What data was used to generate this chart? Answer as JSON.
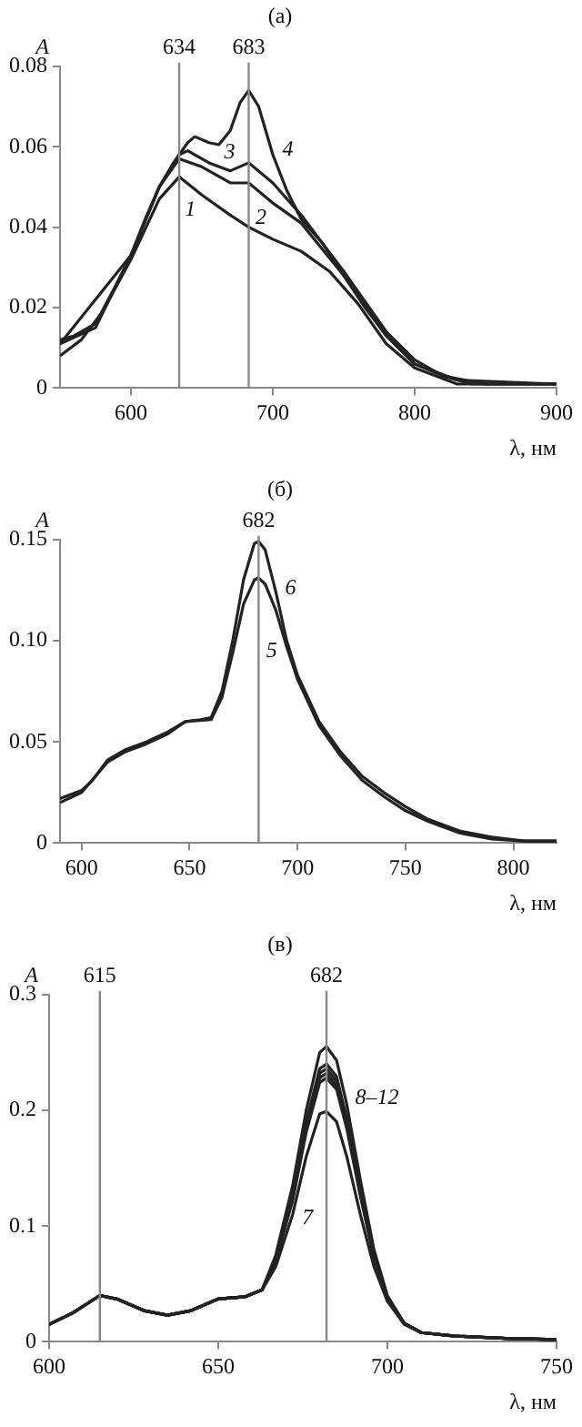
{
  "chart_data": [
    {
      "type": "line",
      "title": "(а)",
      "xlabel": "λ, нм",
      "ylabel": "A",
      "xlim": [
        550,
        900
      ],
      "xticks": [
        600,
        700,
        800,
        900
      ],
      "ylim": [
        0,
        0.08
      ],
      "yticks": [
        0,
        0.02,
        0.04,
        0.06,
        0.08
      ],
      "series": [
        {
          "color": "#222222",
          "x": [
            550,
            565,
            580,
            600,
            620,
            634,
            650,
            670,
            683,
            700,
            720,
            740,
            760,
            780,
            800,
            830,
            900
          ],
          "values": [
            0.008,
            0.012,
            0.019,
            0.032,
            0.047,
            0.0525,
            0.048,
            0.043,
            0.04,
            0.037,
            0.034,
            0.029,
            0.021,
            0.011,
            0.005,
            0.001,
            0.001
          ]
        },
        {
          "color": "#222222",
          "x": [
            550,
            600,
            620,
            634,
            650,
            670,
            683,
            700,
            720,
            750,
            780,
            800,
            830,
            900
          ],
          "values": [
            0.011,
            0.033,
            0.05,
            0.057,
            0.055,
            0.051,
            0.051,
            0.046,
            0.041,
            0.028,
            0.013,
            0.006,
            0.002,
            0.001
          ]
        },
        {
          "color": "#222222",
          "x": [
            550,
            575,
            600,
            620,
            634,
            640,
            655,
            670,
            683,
            700,
            720,
            750,
            780,
            800,
            820,
            850,
            900
          ],
          "values": [
            0.011,
            0.015,
            0.033,
            0.05,
            0.058,
            0.059,
            0.056,
            0.054,
            0.056,
            0.051,
            0.043,
            0.029,
            0.014,
            0.007,
            0.003,
            0.001,
            0.001
          ]
        },
        {
          "color": "#222222",
          "x": [
            550,
            560,
            575,
            590,
            600,
            610,
            620,
            630,
            640,
            645,
            655,
            662,
            670,
            677,
            683,
            690,
            700,
            710,
            720,
            735,
            750,
            765,
            780,
            800,
            820,
            840,
            870,
            900
          ],
          "values": [
            0.012,
            0.013,
            0.016,
            0.026,
            0.033,
            0.042,
            0.05,
            0.056,
            0.061,
            0.0625,
            0.061,
            0.0605,
            0.064,
            0.071,
            0.074,
            0.07,
            0.058,
            0.049,
            0.042,
            0.036,
            0.028,
            0.02,
            0.013,
            0.006,
            0.003,
            0.001,
            0.001,
            0.001
          ]
        }
      ],
      "ref_lines": [
        {
          "axis": "x",
          "value": 634,
          "label": "634",
          "color": "#888888"
        },
        {
          "axis": "x",
          "value": 683,
          "label": "683",
          "color": "#888888"
        }
      ],
      "annotations": [
        {
          "text": "1",
          "x": 650,
          "y": 0.048
        },
        {
          "text": "2",
          "x": 700,
          "y": 0.046
        },
        {
          "text": "3",
          "x": 670,
          "y": 0.054
        },
        {
          "text": "4",
          "x": 700,
          "y": 0.058
        }
      ]
    },
    {
      "type": "line",
      "title": "(б)",
      "xlabel": "λ, нм",
      "ylabel": "A",
      "xlim": [
        590,
        820
      ],
      "xticks": [
        600,
        650,
        700,
        750,
        800
      ],
      "ylim": [
        0,
        0.15
      ],
      "yticks": [
        0,
        0.05,
        {
          "value": 0.1,
          "label": "0.10"
        },
        0.15
      ],
      "series": [
        {
          "color": "#222222",
          "x": [
            590,
            600,
            612,
            620,
            630,
            640,
            648,
            660,
            665,
            670,
            675,
            680,
            682,
            685,
            690,
            695,
            700,
            710,
            720,
            730,
            740,
            750,
            760,
            775,
            790,
            805,
            820
          ],
          "values": [
            0.02,
            0.025,
            0.04,
            0.045,
            0.049,
            0.054,
            0.06,
            0.061,
            0.072,
            0.094,
            0.118,
            0.13,
            0.131,
            0.128,
            0.115,
            0.097,
            0.081,
            0.058,
            0.043,
            0.031,
            0.023,
            0.016,
            0.011,
            0.005,
            0.002,
            0.001,
            0.001
          ]
        },
        {
          "color": "#222222",
          "x": [
            590,
            600,
            605,
            612,
            620,
            630,
            640,
            648,
            655,
            660,
            665,
            670,
            675,
            680,
            682,
            685,
            690,
            695,
            700,
            710,
            720,
            730,
            740,
            750,
            760,
            775,
            790,
            805,
            820
          ],
          "values": [
            0.022,
            0.026,
            0.031,
            0.041,
            0.046,
            0.05,
            0.055,
            0.06,
            0.061,
            0.062,
            0.075,
            0.1,
            0.13,
            0.148,
            0.149,
            0.145,
            0.124,
            0.1,
            0.083,
            0.06,
            0.045,
            0.033,
            0.025,
            0.018,
            0.012,
            0.006,
            0.003,
            0.001,
            0.001
          ]
        }
      ],
      "ref_lines": [
        {
          "axis": "x",
          "value": 682,
          "label": "682",
          "color": "#888888"
        }
      ],
      "annotations": [
        {
          "text": "5",
          "x": 695,
          "y": 0.097
        },
        {
          "text": "6",
          "x": 690,
          "y": 0.124
        }
      ]
    },
    {
      "type": "line",
      "title": "(в)",
      "xlabel": "λ, нм",
      "ylabel": "A",
      "xlim": [
        600,
        750
      ],
      "xticks": [
        600,
        650,
        700,
        750
      ],
      "ylim": [
        0,
        0.3
      ],
      "yticks": [
        0,
        0.1,
        0.2,
        0.3
      ],
      "series": [
        {
          "color": "#222222",
          "x": [
            600,
            607,
            615,
            620,
            628,
            635,
            642,
            650,
            658,
            663,
            667,
            672,
            676,
            680,
            682,
            685,
            688,
            692,
            696,
            700,
            705,
            710,
            720,
            735,
            750
          ],
          "values": [
            0.015,
            0.025,
            0.04,
            0.037,
            0.027,
            0.023,
            0.027,
            0.037,
            0.039,
            0.045,
            0.065,
            0.11,
            0.16,
            0.197,
            0.199,
            0.19,
            0.16,
            0.11,
            0.065,
            0.035,
            0.015,
            0.008,
            0.005,
            0.003,
            0.002
          ]
        },
        {
          "color": "#222222",
          "x": [
            600,
            607,
            615,
            620,
            628,
            635,
            642,
            650,
            658,
            663,
            667,
            672,
            676,
            680,
            682,
            685,
            688,
            692,
            696,
            700,
            705,
            710,
            720,
            735,
            750
          ],
          "values": [
            0.015,
            0.025,
            0.04,
            0.037,
            0.027,
            0.023,
            0.027,
            0.037,
            0.039,
            0.045,
            0.07,
            0.122,
            0.181,
            0.224,
            0.228,
            0.218,
            0.184,
            0.126,
            0.073,
            0.037,
            0.016,
            0.008,
            0.005,
            0.003,
            0.002
          ]
        },
        {
          "color": "#222222",
          "x": [
            600,
            607,
            615,
            620,
            628,
            635,
            642,
            650,
            658,
            663,
            667,
            672,
            676,
            680,
            682,
            685,
            688,
            692,
            696,
            700,
            705,
            710,
            720,
            735,
            750
          ],
          "values": [
            0.015,
            0.025,
            0.04,
            0.037,
            0.027,
            0.023,
            0.027,
            0.037,
            0.039,
            0.045,
            0.07,
            0.124,
            0.184,
            0.228,
            0.232,
            0.221,
            0.187,
            0.128,
            0.074,
            0.037,
            0.016,
            0.008,
            0.005,
            0.003,
            0.002
          ]
        },
        {
          "color": "#222222",
          "x": [
            600,
            607,
            615,
            620,
            628,
            635,
            642,
            650,
            658,
            663,
            667,
            672,
            676,
            680,
            682,
            685,
            688,
            692,
            696,
            700,
            705,
            710,
            720,
            735,
            750
          ],
          "values": [
            0.015,
            0.025,
            0.04,
            0.037,
            0.027,
            0.023,
            0.027,
            0.037,
            0.039,
            0.045,
            0.071,
            0.126,
            0.187,
            0.232,
            0.236,
            0.225,
            0.19,
            0.13,
            0.075,
            0.038,
            0.016,
            0.008,
            0.005,
            0.003,
            0.002
          ]
        },
        {
          "color": "#222222",
          "x": [
            600,
            607,
            615,
            620,
            628,
            635,
            642,
            650,
            658,
            663,
            667,
            672,
            676,
            680,
            682,
            685,
            688,
            692,
            696,
            700,
            705,
            710,
            720,
            735,
            750
          ],
          "values": [
            0.015,
            0.025,
            0.04,
            0.037,
            0.027,
            0.023,
            0.027,
            0.037,
            0.039,
            0.045,
            0.072,
            0.128,
            0.19,
            0.236,
            0.24,
            0.229,
            0.193,
            0.132,
            0.076,
            0.038,
            0.016,
            0.008,
            0.005,
            0.003,
            0.002
          ]
        },
        {
          "color": "#222222",
          "x": [
            600,
            607,
            615,
            620,
            628,
            635,
            642,
            650,
            658,
            663,
            667,
            672,
            676,
            680,
            682,
            685,
            688,
            692,
            696,
            700,
            705,
            710,
            720,
            735,
            750
          ],
          "values": [
            0.015,
            0.025,
            0.04,
            0.037,
            0.027,
            0.023,
            0.027,
            0.037,
            0.039,
            0.045,
            0.075,
            0.135,
            0.2,
            0.25,
            0.255,
            0.243,
            0.205,
            0.14,
            0.08,
            0.04,
            0.016,
            0.008,
            0.005,
            0.003,
            0.002
          ]
        }
      ],
      "ref_lines": [
        {
          "axis": "x",
          "value": 615,
          "label": "615",
          "color": "#888888"
        },
        {
          "axis": "x",
          "value": 682,
          "label": "682",
          "color": "#888888"
        }
      ],
      "annotations": [
        {
          "text": "7",
          "x": 672,
          "y": 0.11
        },
        {
          "text": "8–12",
          "x": 688,
          "y": 0.205
        }
      ]
    }
  ]
}
